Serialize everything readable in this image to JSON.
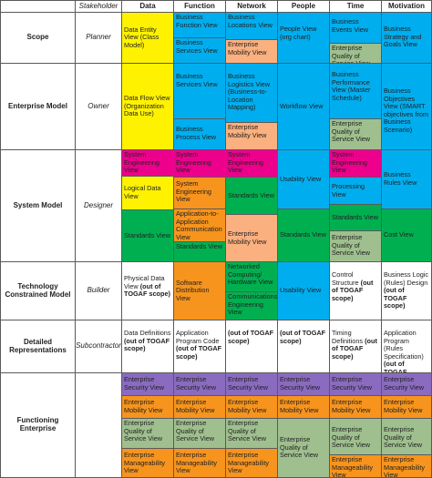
{
  "headers": [
    "Stakeholder",
    "Data",
    "Function",
    "Network",
    "People",
    "Time",
    "Motivation"
  ],
  "rows": [
    {
      "label": "Scope",
      "stakeholder": "Planner"
    },
    {
      "label": "Enterprise Model",
      "stakeholder": "Owner"
    },
    {
      "label": "System Model",
      "stakeholder": "Designer"
    },
    {
      "label": "Technology Constrained Model",
      "stakeholder": "Builder"
    },
    {
      "label": "Detailed Representations",
      "stakeholder": "Subcontractor"
    },
    {
      "label": "Functioning Enterprise",
      "stakeholder": ""
    }
  ],
  "colors": {
    "yellow": "#fff200",
    "blue": "#00aeef",
    "orange": "#f7941d",
    "salmon": "#fbb07f",
    "magenta": "#ec008c",
    "green": "#00b050",
    "sage": "#9fbf8f",
    "purple": "#8a6bbf",
    "white": "#ffffff"
  },
  "cells": [
    {
      "text": "Data Entity View (Class Model)",
      "color": "yellow"
    },
    {
      "text": "Business Function View",
      "color": "blue"
    },
    {
      "text": "Business Services View",
      "color": "blue"
    },
    {
      "text": "Business Locations View",
      "color": "blue"
    },
    {
      "text": "Enterprise Mobility View",
      "color": "salmon"
    },
    {
      "text": "People View (org chart)",
      "color": "blue"
    },
    {
      "text": "Business Events View",
      "color": "blue"
    },
    {
      "text": "Enterprise Quality of Service View",
      "color": "sage"
    },
    {
      "text": "Business Strategy and Goals View",
      "color": "blue"
    },
    {
      "text": "Data Flow View (Organization Data Use)",
      "color": "yellow"
    },
    {
      "text": "Business Services View",
      "color": "blue"
    },
    {
      "text": "Business Process View",
      "color": "blue"
    },
    {
      "text": "Business Logistics View (Business-to-Location Mapping)",
      "color": "blue"
    },
    {
      "text": "Enterprise Mobility View",
      "color": "salmon"
    },
    {
      "text": "Workflow View",
      "color": "blue"
    },
    {
      "text": "Business Performance View (Master Schedule)",
      "color": "blue"
    },
    {
      "text": "Enterprise Quality of Service View",
      "color": "sage"
    },
    {
      "text": "Business Objectives View (SMART objectives from Business Scenario)",
      "color": "blue"
    },
    {
      "text": "System Engineering View",
      "color": "magenta"
    },
    {
      "text": "Logical Data View",
      "color": "yellow"
    },
    {
      "text": "Standards View",
      "color": "green"
    },
    {
      "text": "System Engineering View",
      "color": "magenta"
    },
    {
      "text": "System Engineering View",
      "color": "orange"
    },
    {
      "text": "Application-to-Application Communication View",
      "color": "orange"
    },
    {
      "text": "Standards View",
      "color": "green"
    },
    {
      "text": "System Engineering View",
      "color": "magenta"
    },
    {
      "text": "Standards View",
      "color": "green"
    },
    {
      "text": "Enterprise Mobility View",
      "color": "salmon"
    },
    {
      "text": "Usability View",
      "color": "blue"
    },
    {
      "text": "Standards View",
      "color": "green"
    },
    {
      "text": "System Engineering View",
      "color": "magenta"
    },
    {
      "text": "Processing View",
      "color": "blue"
    },
    {
      "text": "Standards View",
      "color": "green"
    },
    {
      "text": "Enterprise Quality of Service View",
      "color": "sage"
    },
    {
      "text": "Business Rules View",
      "color": "blue"
    },
    {
      "text": "Cost View",
      "color": "green"
    },
    {
      "text": "Physical Data View (out of TOGAF scope)",
      "color": "white",
      "bold": "(out of TOGAF scope)"
    },
    {
      "text": "Software Distribution View",
      "color": "orange"
    },
    {
      "text": "Networked Computing/ Hardware View",
      "color": "green"
    },
    {
      "text": "Communications Engineering View",
      "color": "green"
    },
    {
      "text": "Usability View",
      "color": "blue"
    },
    {
      "text": "Control Structure (out of TOGAF scope)",
      "color": "white"
    },
    {
      "text": "Business Logic (Rules) Design (out of TOGAF scope)",
      "color": "white"
    },
    {
      "text": "Data Definitions (out of TOGAF scope)",
      "color": "white"
    },
    {
      "text": "Application Program Code (out of TOGAF scope)",
      "color": "white"
    },
    {
      "text": "(out of TOGAF scope)",
      "color": "white"
    },
    {
      "text": "(out of TOGAF scope)",
      "color": "white"
    },
    {
      "text": "Timing Definitions (out of TOGAF scope)",
      "color": "white"
    },
    {
      "text": "Application Program (Rules Specification) (out of TOGAF scope)",
      "color": "white"
    },
    {
      "text": "Enterprise Security View",
      "color": "purple"
    },
    {
      "text": "Enterprise Mobility View",
      "color": "orange"
    },
    {
      "text": "Enterprise Quality of Service View",
      "color": "sage"
    },
    {
      "text": "Enterprise Manageability View",
      "color": "orange"
    },
    {
      "text": "Enterprise Security View",
      "color": "purple"
    },
    {
      "text": "Enterprise Mobility View",
      "color": "orange"
    },
    {
      "text": "Enterprise Quality of Service View",
      "color": "sage"
    },
    {
      "text": "Enterprise Manageability View",
      "color": "orange"
    },
    {
      "text": "Enterprise Security View",
      "color": "purple"
    },
    {
      "text": "Enterprise Mobility View",
      "color": "orange"
    },
    {
      "text": "Enterprise Quality of Service View",
      "color": "sage"
    },
    {
      "text": "Enterprise Manageability View",
      "color": "orange"
    },
    {
      "text": "Enterprise Security View",
      "color": "purple"
    },
    {
      "text": "Enterprise Mobility View",
      "color": "orange"
    },
    {
      "text": "Enterprise Quality of Service View",
      "color": "sage"
    },
    {
      "text": "Enterprise Security View",
      "color": "purple"
    },
    {
      "text": "Enterprise Mobility View",
      "color": "orange"
    },
    {
      "text": "Enterprise Quality of Service View",
      "color": "sage"
    },
    {
      "text": "Enterprise Manageability View",
      "color": "orange"
    },
    {
      "text": "Enterprise Security View",
      "color": "purple"
    },
    {
      "text": "Enterprise Mobility View",
      "color": "orange"
    },
    {
      "text": "Enterprise Quality of Service View",
      "color": "sage"
    },
    {
      "text": "Enterprise Manageability View",
      "color": "orange"
    }
  ]
}
